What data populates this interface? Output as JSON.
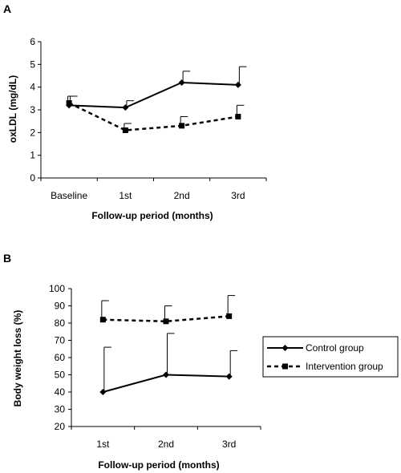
{
  "chart_data": [
    {
      "panel": "A",
      "type": "line",
      "xlabel": "Follow-up period (months)",
      "ylabel": "oxLDL (mg/dL)",
      "categories": [
        "Baseline",
        "1st",
        "2nd",
        "3rd"
      ],
      "ylim": [
        0,
        6
      ],
      "yticks": [
        "0",
        "1",
        "2",
        "3",
        "4",
        "5",
        "6"
      ],
      "grid": false,
      "series": [
        {
          "name": "Control group",
          "style": "solid",
          "marker": "diamond",
          "values": [
            3.2,
            3.1,
            4.2,
            4.1
          ],
          "error_upper": [
            0.4,
            0.3,
            0.5,
            0.8
          ]
        },
        {
          "name": "Intervention group",
          "style": "dashed",
          "marker": "square",
          "values": [
            3.3,
            2.1,
            2.3,
            2.7
          ],
          "error_upper": [
            0.3,
            0.3,
            0.4,
            0.5
          ]
        }
      ]
    },
    {
      "panel": "B",
      "type": "line",
      "xlabel": "Follow-up period (months)",
      "ylabel": "Body weight loss (%)",
      "categories": [
        "1st",
        "2nd",
        "3rd"
      ],
      "ylim": [
        20,
        100
      ],
      "yticks": [
        "20",
        "30",
        "40",
        "50",
        "60",
        "70",
        "80",
        "90",
        "100"
      ],
      "grid": false,
      "legend": "right",
      "series": [
        {
          "name": "Control group",
          "style": "solid",
          "marker": "diamond",
          "values": [
            40,
            50,
            49
          ],
          "error_upper": [
            26,
            24,
            15
          ]
        },
        {
          "name": "Intervention group",
          "style": "dashed",
          "marker": "square",
          "values": [
            82,
            81,
            84
          ],
          "error_upper": [
            11,
            9,
            12
          ]
        }
      ]
    }
  ]
}
